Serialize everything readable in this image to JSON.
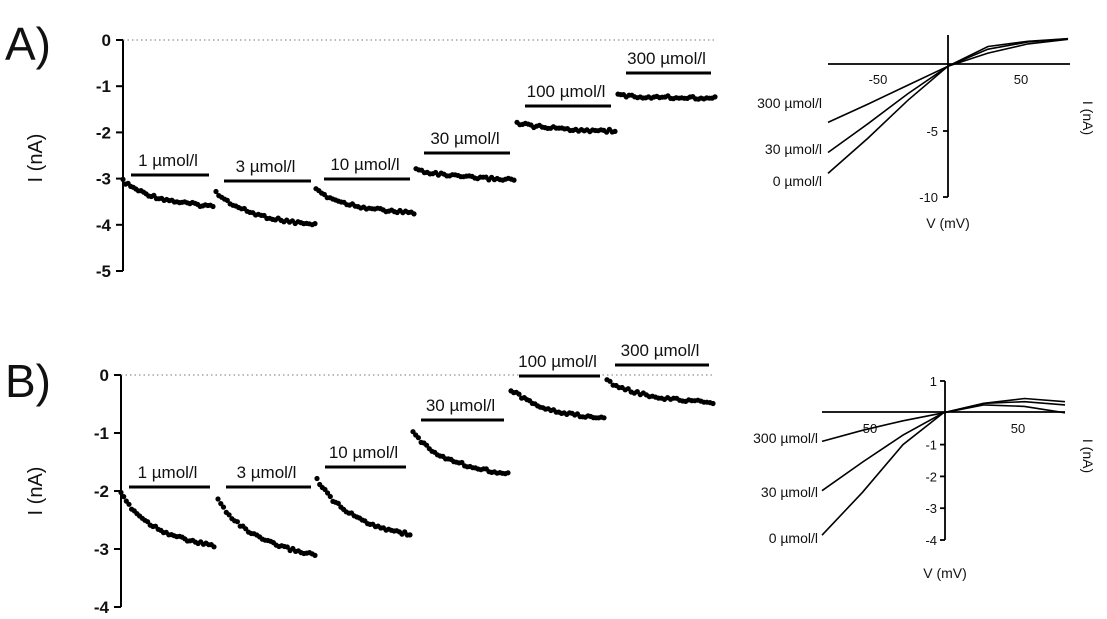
{
  "chart_data": [
    {
      "type": "scatter",
      "panel_label": "A)",
      "ylabel": "I (nA)",
      "yticks": [
        "0",
        "-1",
        "-2",
        "-3",
        "-4",
        "-5"
      ],
      "ylim": [
        -5,
        0
      ],
      "series": [
        {
          "name": "1 µmol/l",
          "start": -3.05,
          "end": -3.6
        },
        {
          "name": "3 µmol/l",
          "start": -3.3,
          "end": -4.0
        },
        {
          "name": "10 µmol/l",
          "start": -3.25,
          "end": -3.75
        },
        {
          "name": "30 µmol/l",
          "start": -2.8,
          "end": -3.02
        },
        {
          "name": "100 µmol/l",
          "start": -1.8,
          "end": -1.97
        },
        {
          "name": "300 µmol/l",
          "start": -1.2,
          "end": -1.25
        }
      ]
    },
    {
      "type": "line",
      "xlabel": "V (mV)",
      "ylabel": "I (nA)",
      "xticks": [
        "-50",
        "50"
      ],
      "yticks": [
        "-5",
        "-10"
      ],
      "xlim": [
        -75,
        75
      ],
      "ylim": [
        -10,
        2
      ],
      "series": [
        {
          "name": "300 µmol/l",
          "x": [
            -75,
            -50,
            -25,
            0,
            25,
            50,
            75
          ],
          "y": [
            -4.3,
            -2.9,
            -1.45,
            0,
            1.0,
            1.7,
            2.05
          ]
        },
        {
          "name": "30 µmol/l",
          "x": [
            -75,
            -50,
            -25,
            0,
            25,
            50,
            75
          ],
          "y": [
            -6.6,
            -4.4,
            -2.1,
            0,
            1.3,
            1.85,
            2.1
          ]
        },
        {
          "name": "0 µmol/l",
          "x": [
            -75,
            -50,
            -25,
            0,
            25,
            50,
            75
          ],
          "y": [
            -8.2,
            -5.5,
            -2.6,
            0,
            1.5,
            1.9,
            2.1
          ]
        }
      ]
    },
    {
      "type": "scatter",
      "panel_label": "B)",
      "ylabel": "I (nA)",
      "yticks": [
        "0",
        "-1",
        "-2",
        "-3",
        "-4"
      ],
      "ylim": [
        -4,
        0
      ],
      "series": [
        {
          "name": "1 µmol/l",
          "start": -2.05,
          "end": -2.95
        },
        {
          "name": "3 µmol/l",
          "start": -2.15,
          "end": -3.1
        },
        {
          "name": "10 µmol/l",
          "start": -1.8,
          "end": -2.75
        },
        {
          "name": "30 µmol/l",
          "start": -1.0,
          "end": -1.7
        },
        {
          "name": "100 µmol/l",
          "start": -0.25,
          "end": -0.75
        },
        {
          "name": "300 µmol/l",
          "start": -0.1,
          "end": -0.48
        }
      ]
    },
    {
      "type": "line",
      "xlabel": "V (mV)",
      "ylabel": "I (nA)",
      "xticks": [
        "50",
        "50"
      ],
      "yticks": [
        "1",
        "-1",
        "-2",
        "-3",
        "-4"
      ],
      "xlim": [
        -75,
        75
      ],
      "ylim": [
        -4,
        1
      ],
      "series": [
        {
          "name": "300 µmol/l",
          "x": [
            -75,
            -50,
            -25,
            0,
            25,
            50,
            75
          ],
          "y": [
            -0.9,
            -0.55,
            -0.25,
            0,
            0.3,
            0.45,
            0.35
          ]
        },
        {
          "name": "30 µmol/l",
          "x": [
            -75,
            -50,
            -25,
            0,
            25,
            50,
            75
          ],
          "y": [
            -2.45,
            -1.55,
            -0.7,
            0,
            0.3,
            0.35,
            0.25
          ]
        },
        {
          "name": "0 µmol/l",
          "x": [
            -75,
            -50,
            -25,
            0,
            25,
            50,
            75
          ],
          "y": [
            -3.85,
            -2.5,
            -1.0,
            0,
            0.25,
            0.2,
            0.0
          ]
        }
      ]
    }
  ]
}
